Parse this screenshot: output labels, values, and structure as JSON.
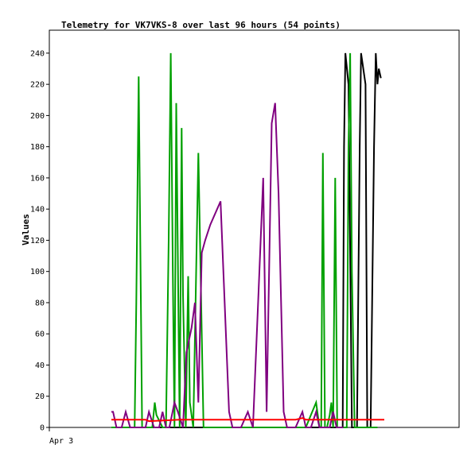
{
  "chart_data": {
    "type": "line",
    "title": "Telemetry for VK7VKS-8 over last 96 hours (54 points)",
    "xlabel": "",
    "ylabel": "Values",
    "x_tick_labels": [
      "Apr 3"
    ],
    "y_ticks": [
      0,
      20,
      40,
      60,
      80,
      100,
      120,
      140,
      160,
      180,
      200,
      220,
      240
    ],
    "ylim": [
      0,
      255
    ],
    "grid": false,
    "legend": "none",
    "series": [
      {
        "color": "#000000",
        "x": [
          0,
          10,
          50,
          60,
          65,
          67.8,
          68.2,
          68.6,
          69.5,
          70.5,
          71,
          72,
          72.8,
          73.2,
          74.5,
          75,
          75.6,
          76,
          77,
          77.5,
          78,
          78.4,
          79
        ],
        "y": [
          0,
          0,
          0,
          0,
          0,
          0,
          180,
          240,
          220,
          0,
          0,
          0,
          180,
          240,
          220,
          0,
          0,
          0,
          180,
          240,
          220,
          230,
          224
        ]
      },
      {
        "color": "#00a000",
        "x": [
          0,
          5,
          6.8,
          7.3,
          8,
          9,
          10.5,
          12,
          12.7,
          13.2,
          15,
          16,
          16.8,
          17.4,
          18,
          18.5,
          19,
          20,
          20.6,
          21,
          21.8,
          22.5,
          23,
          24,
          25.5,
          27,
          28,
          28.5,
          29,
          29.8,
          31,
          40,
          50,
          57,
          58.5,
          60,
          61,
          61.5,
          62,
          62.6,
          63.2,
          64,
          64.5,
          65,
          65.6,
          66.2,
          67,
          69,
          69.5,
          70,
          70.5,
          71.3,
          72.3,
          73,
          74,
          76,
          77,
          78
        ],
        "y": [
          0,
          0,
          0,
          80,
          225,
          0,
          0,
          0,
          16,
          8,
          0,
          0,
          120,
          240,
          100,
          0,
          208,
          0,
          192,
          85,
          0,
          97,
          16,
          0,
          176,
          0,
          0,
          0,
          0,
          0,
          0,
          0,
          0,
          0,
          8,
          16,
          0,
          0,
          176,
          0,
          0,
          8,
          16,
          0,
          160,
          0,
          0,
          0,
          180,
          240,
          100,
          0,
          0,
          0,
          0,
          0,
          0,
          0
        ]
      },
      {
        "color": "#800080",
        "x": [
          0,
          0.5,
          1.5,
          3,
          4.2,
          5.5,
          7,
          8.5,
          10,
          11,
          12.5,
          14,
          15,
          16,
          17,
          18.5,
          19.5,
          21,
          22,
          23.5,
          24.5,
          25.5,
          26.5,
          27.5,
          29,
          32,
          34.5,
          35.5,
          37,
          38,
          40,
          41.5,
          43,
          44.5,
          45.5,
          47,
          48,
          49,
          50.5,
          51.5,
          52.5,
          54,
          56,
          57,
          58.5,
          60,
          61,
          62,
          63,
          64,
          65,
          66,
          67,
          68
        ],
        "y": [
          10,
          10,
          0,
          0,
          10,
          0,
          0,
          0,
          0,
          10,
          0,
          0,
          10,
          0,
          0,
          16,
          10,
          0,
          48,
          64,
          80,
          16,
          112,
          120,
          130,
          145,
          10,
          0,
          0,
          0,
          10,
          0,
          80,
          160,
          10,
          195,
          208,
          150,
          10,
          0,
          0,
          0,
          10,
          0,
          0,
          10,
          0,
          0,
          0,
          0,
          10,
          0,
          0,
          0
        ]
      },
      {
        "color": "#ff0000",
        "x": [
          0,
          10,
          11,
          20,
          30,
          40,
          50,
          54,
          56,
          57,
          58,
          60,
          70,
          80
        ],
        "y": [
          5,
          5,
          4,
          5,
          5,
          5,
          5,
          5,
          6,
          5,
          5,
          5,
          5,
          5
        ]
      }
    ]
  }
}
